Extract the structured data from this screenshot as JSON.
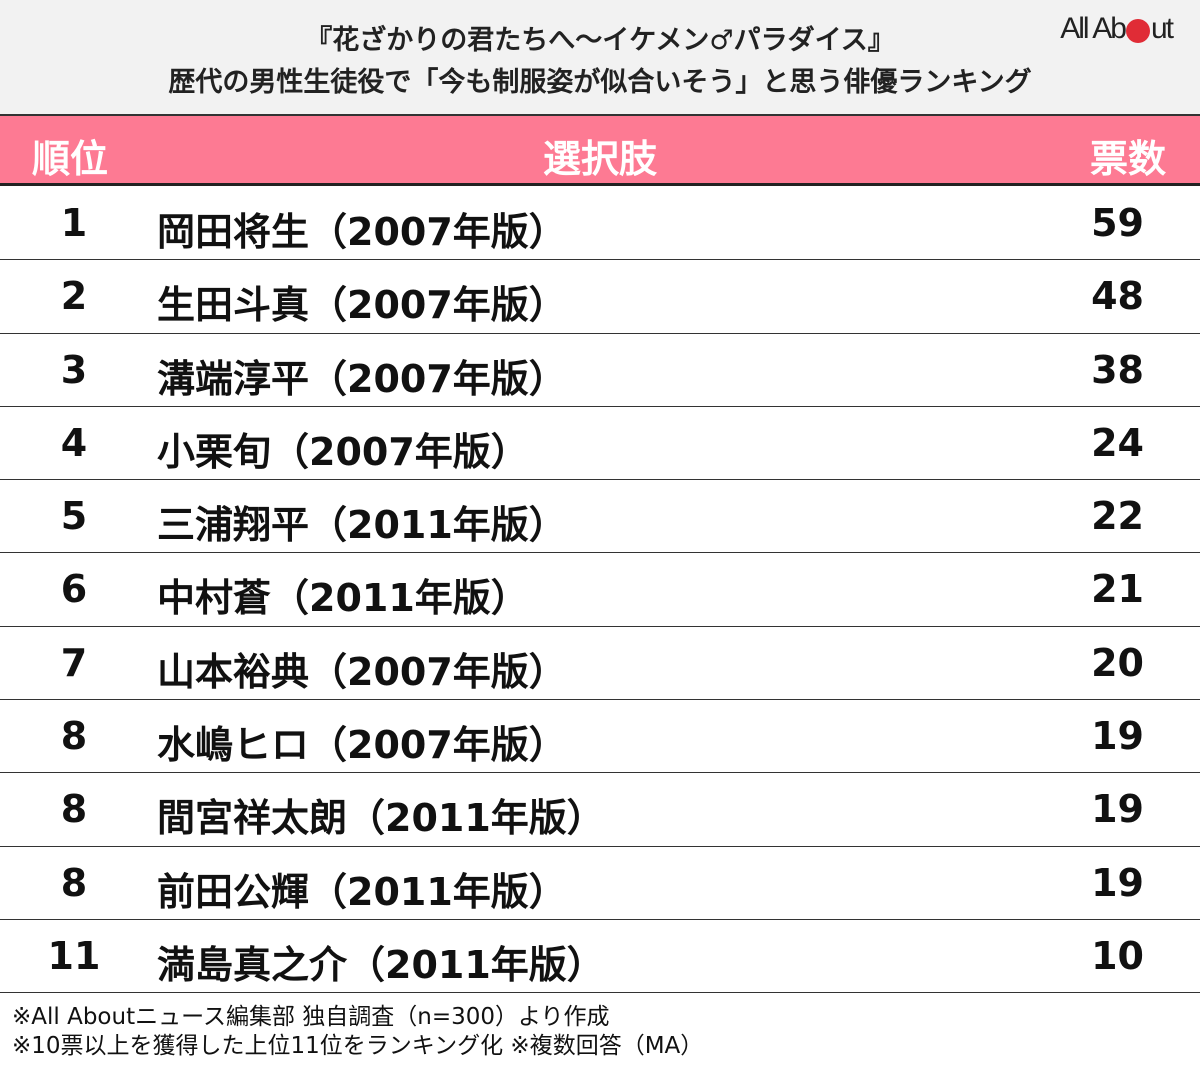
{
  "header": {
    "title_line1": "『花ざかりの君たちへ〜イケメン♂パラダイス』",
    "title_line2": "歴代の男性生徒役で「今も制服姿が似合いそう」と思う俳優ランキング",
    "logo": {
      "pre": "All Ab",
      "post": "ut",
      "dot_color": "#e02c36"
    }
  },
  "table": {
    "columns": [
      "順位",
      "選択肢",
      "票数"
    ],
    "header_color": "#fd7a93",
    "rows": [
      {
        "rank": "1",
        "name": "岡田将生（2007年版）",
        "votes": "59"
      },
      {
        "rank": "2",
        "name": "生田斗真（2007年版）",
        "votes": "48"
      },
      {
        "rank": "3",
        "name": "溝端淳平（2007年版）",
        "votes": "38"
      },
      {
        "rank": "4",
        "name": "小栗旬（2007年版）",
        "votes": "24"
      },
      {
        "rank": "5",
        "name": "三浦翔平（2011年版）",
        "votes": "22"
      },
      {
        "rank": "6",
        "name": "中村蒼（2011年版）",
        "votes": "21"
      },
      {
        "rank": "7",
        "name": "山本裕典（2007年版）",
        "votes": "20"
      },
      {
        "rank": "8",
        "name": "水嶋ヒロ（2007年版）",
        "votes": "19"
      },
      {
        "rank": "8",
        "name": "間宮祥太朗（2011年版）",
        "votes": "19"
      },
      {
        "rank": "8",
        "name": "前田公輝（2011年版）",
        "votes": "19"
      },
      {
        "rank": "11",
        "name": "満島真之介（2011年版）",
        "votes": "10"
      }
    ]
  },
  "notes": {
    "line1": "※All Aboutニュース編集部 独自調査（n=300）より作成",
    "line2": "※10票以上を獲得した上位11位をランキング化 ※複数回答（MA）"
  },
  "chart_data": {
    "type": "table",
    "title": "『花ざかりの君たちへ〜イケメン♂パラダイス』歴代の男性生徒役で「今も制服姿が似合いそう」と思う俳優ランキング",
    "columns": [
      "順位",
      "選択肢",
      "票数"
    ],
    "categories": [
      "岡田将生（2007年版）",
      "生田斗真（2007年版）",
      "溝端淳平（2007年版）",
      "小栗旬（2007年版）",
      "三浦翔平（2011年版）",
      "中村蒼（2011年版）",
      "山本裕典（2007年版）",
      "水嶋ヒロ（2007年版）",
      "間宮祥太朗（2011年版）",
      "前田公輝（2011年版）",
      "満島真之介（2011年版）"
    ],
    "ranks": [
      1,
      2,
      3,
      4,
      5,
      6,
      7,
      8,
      8,
      8,
      11
    ],
    "values": [
      59,
      48,
      38,
      24,
      22,
      21,
      20,
      19,
      19,
      19,
      10
    ]
  }
}
